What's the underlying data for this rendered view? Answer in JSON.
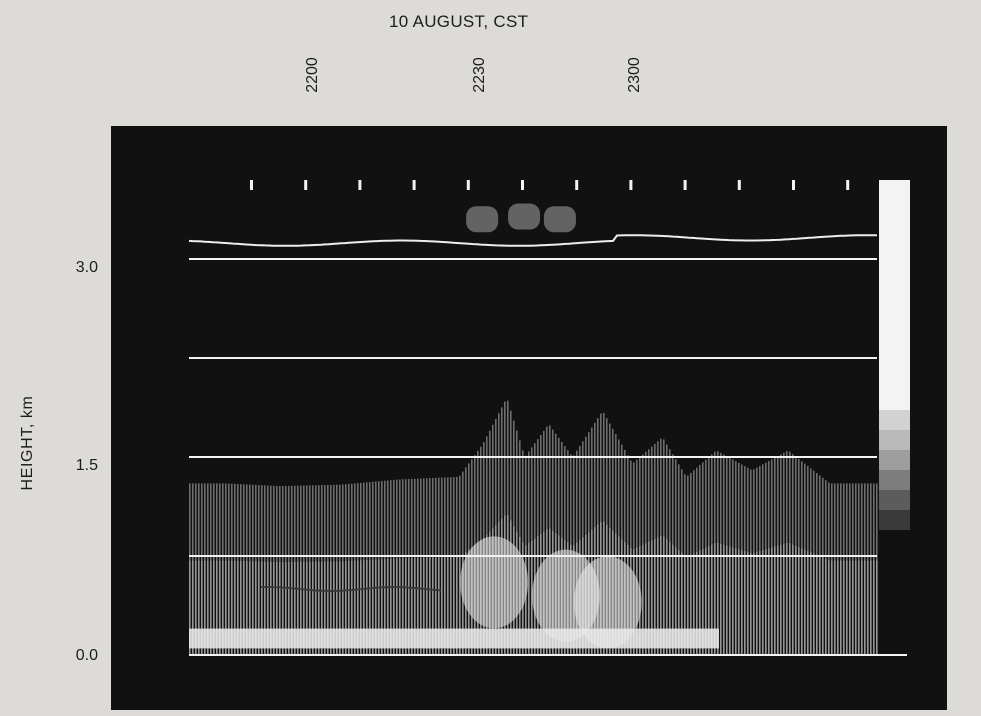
{
  "chart_data": {
    "type": "heatmap",
    "title": "10 AUGUST, CST",
    "xlabel": "",
    "ylabel": "HEIGHT, km",
    "x_ticks": [
      "2200",
      "2230",
      "2300"
    ],
    "y_ticks": [
      "3.0",
      "1.5",
      "0.0"
    ],
    "y_tick_values": [
      3.0,
      1.5,
      0.0
    ],
    "ylim": [
      0.0,
      3.6
    ],
    "x_axis_note": "time",
    "colorbar_levels": [
      "#f3f3f3",
      "#d2d2d2",
      "#b9b9b9",
      "#9d9d9d",
      "#7d7d7d",
      "#5c5c5c",
      "#3a3a3a"
    ],
    "series": [
      {
        "name": "",
        "x": [
          2146,
          2155,
          2205,
          2215,
          2225,
          2229,
          2233,
          2236,
          2240,
          2244,
          2249,
          2254,
          2259,
          2303,
          2308,
          2314,
          2320,
          2327
        ],
        "y": [
          1.3,
          1.28,
          1.29,
          1.33,
          1.35,
          1.6,
          1.95,
          1.5,
          1.75,
          1.5,
          1.85,
          1.45,
          1.65,
          1.35,
          1.55,
          1.4,
          1.55,
          1.3
        ]
      }
    ],
    "grid_lines_km": [
      0.0,
      0.75,
      1.5,
      2.25,
      3.0
    ]
  }
}
